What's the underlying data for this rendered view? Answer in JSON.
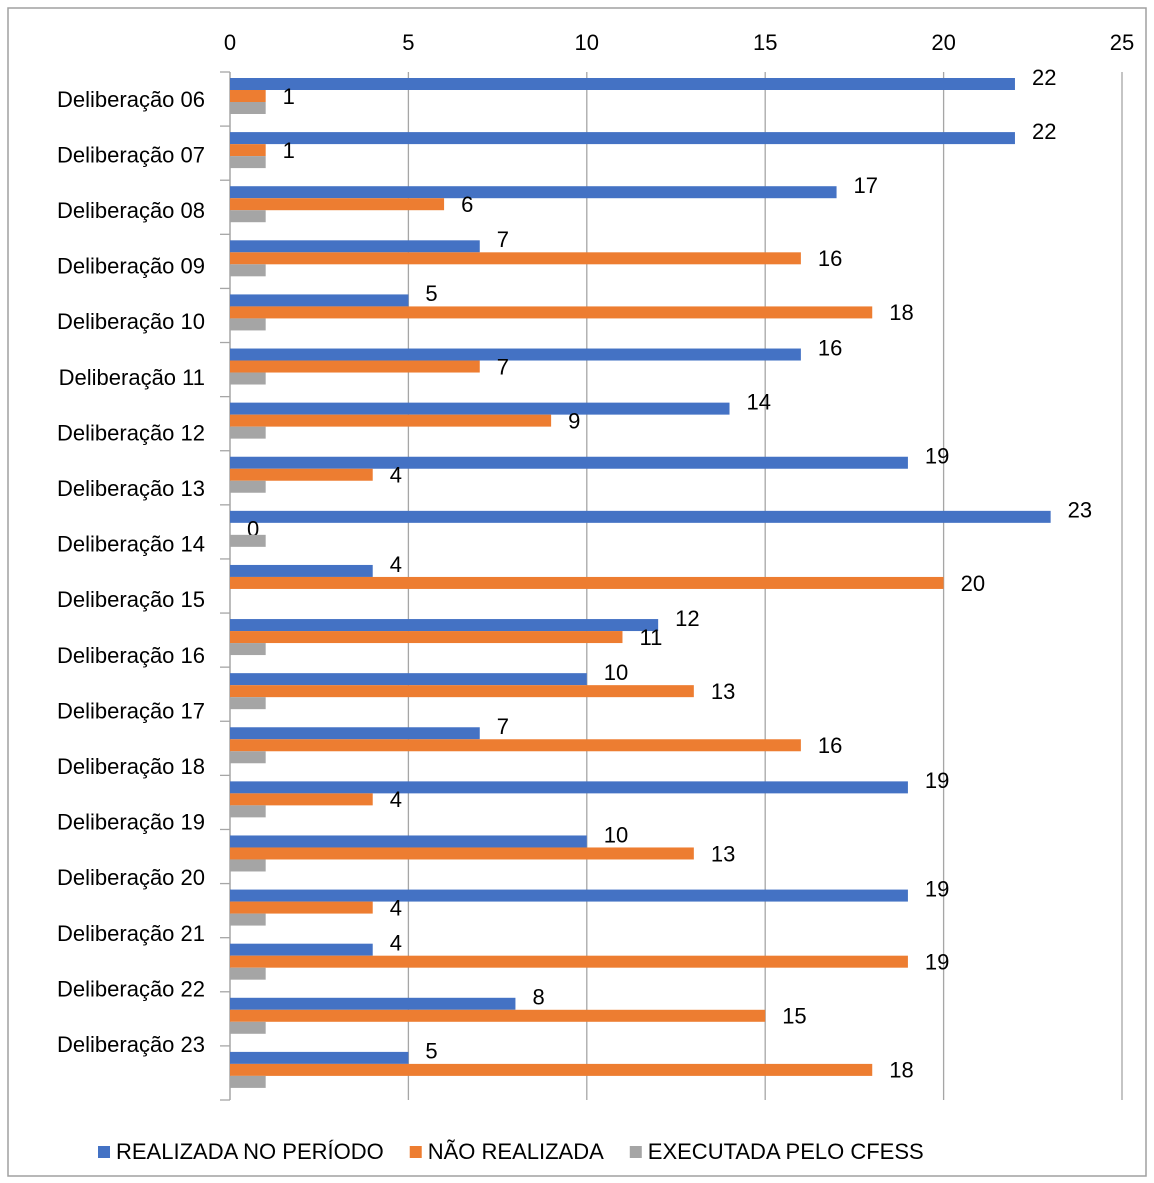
{
  "chart_data": {
    "type": "hbar",
    "categories": [
      "Deliberação 06",
      "Deliberação 07",
      "Deliberação 08",
      "Deliberação 09",
      "Deliberação 10",
      "Deliberação 11",
      "Deliberação 12",
      "Deliberação 13",
      "Deliberação 14",
      "Deliberação 15",
      "Deliberação 16",
      "Deliberação 17",
      "Deliberação 18",
      "Deliberação 19",
      "Deliberação 20",
      "Deliberação 21",
      "Deliberação 22",
      "Deliberação 23",
      null
    ],
    "series": [
      {
        "name": "REALIZADA NO PERÍODO",
        "color": "#4472c4",
        "show_labels": true,
        "values": [
          22,
          22,
          17,
          7,
          5,
          16,
          14,
          19,
          23,
          4,
          12,
          10,
          7,
          19,
          10,
          19,
          4,
          8,
          5
        ]
      },
      {
        "name": "NÃO REALIZADA",
        "color": "#ed7d31",
        "show_labels": true,
        "values": [
          1,
          1,
          6,
          16,
          18,
          7,
          9,
          4,
          0,
          20,
          11,
          13,
          16,
          4,
          13,
          4,
          19,
          15,
          18
        ]
      },
      {
        "name": "EXECUTADA PELO CFESS",
        "color": "#a5a5a5",
        "show_labels": false,
        "values": [
          1,
          1,
          1,
          1,
          1,
          1,
          1,
          1,
          1,
          0,
          1,
          1,
          1,
          1,
          1,
          1,
          1,
          1,
          1
        ]
      }
    ],
    "xlim": [
      0,
      25
    ],
    "xticks": [
      0,
      5,
      10,
      15,
      20,
      25
    ],
    "grid": true,
    "legend": "bottom"
  }
}
